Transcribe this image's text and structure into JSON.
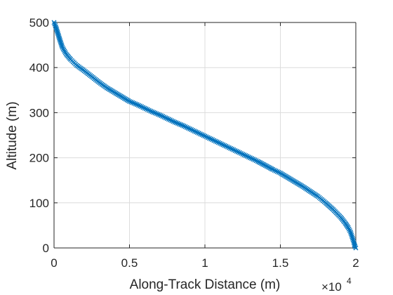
{
  "chart_data": {
    "type": "scatter",
    "title": "",
    "xlabel": "Along-Track Distance (m)",
    "ylabel": "Altitude (m)",
    "x_exponent_base": "×10",
    "x_exponent_power": "4",
    "xlim": [
      0,
      20000
    ],
    "ylim": [
      0,
      500
    ],
    "x_ticks": [
      0,
      5000,
      10000,
      15000,
      20000
    ],
    "x_tick_labels": [
      "0",
      "0.5",
      "1",
      "1.5",
      "2"
    ],
    "y_ticks": [
      0,
      100,
      200,
      300,
      400,
      500
    ],
    "y_tick_labels": [
      "0",
      "100",
      "200",
      "300",
      "400",
      "500"
    ],
    "grid": true,
    "marker": "x",
    "color": "#0072BD",
    "series": [
      {
        "x": [
          0,
          120,
          260,
          400,
          550,
          800,
          1100,
          1500,
          2000,
          2500,
          3000,
          3500,
          4000,
          4500,
          5000,
          5500,
          6000,
          6500,
          7000,
          7500,
          8000,
          8500,
          9000,
          9500,
          10000,
          10500,
          11000,
          11500,
          12000,
          12500,
          13000,
          13500,
          14000,
          14500,
          15000,
          15500,
          16000,
          16500,
          17000,
          17500,
          18000,
          18500,
          19000,
          19300,
          19500,
          19650,
          19750,
          19850,
          19900,
          19950,
          20000
        ],
        "y": [
          500,
          490,
          475,
          460,
          445,
          430,
          418,
          405,
          393,
          380,
          367,
          355,
          345,
          335,
          325,
          318,
          310,
          302,
          295,
          287,
          279,
          272,
          264,
          256,
          248,
          240,
          232,
          224,
          216,
          208,
          200,
          192,
          183,
          174,
          166,
          156,
          146,
          136,
          125,
          114,
          100,
          85,
          68,
          55,
          45,
          35,
          25,
          15,
          8,
          3,
          0
        ]
      }
    ]
  }
}
